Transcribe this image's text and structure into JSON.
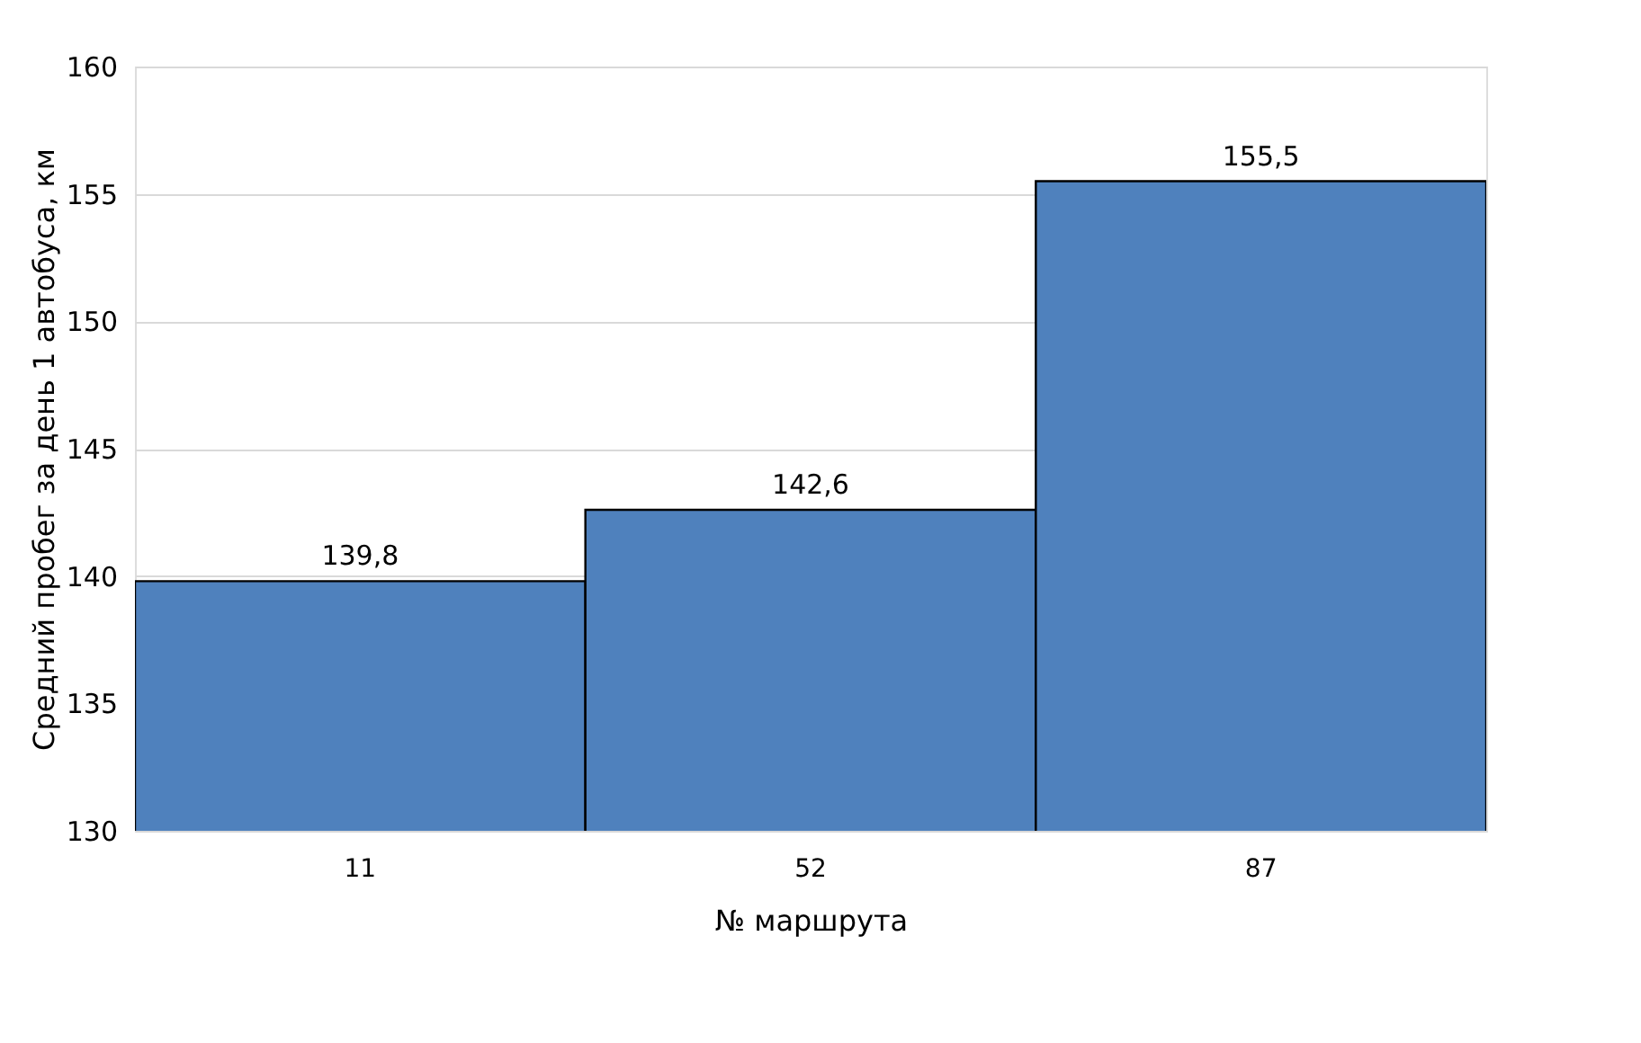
{
  "chart_data": {
    "type": "bar",
    "xlabel": "№ маршрута",
    "ylabel": "Средний пробег за день 1 автобуса, км",
    "categories": [
      "11",
      "52",
      "87"
    ],
    "values": [
      139.8,
      142.6,
      155.5
    ],
    "value_labels": [
      "139,8",
      "142,6",
      "155,5"
    ],
    "color": "#4f81bd",
    "ylim": [
      130,
      160
    ],
    "yticks": [
      130,
      135,
      140,
      145,
      150,
      155,
      160
    ],
    "grid": "y"
  }
}
